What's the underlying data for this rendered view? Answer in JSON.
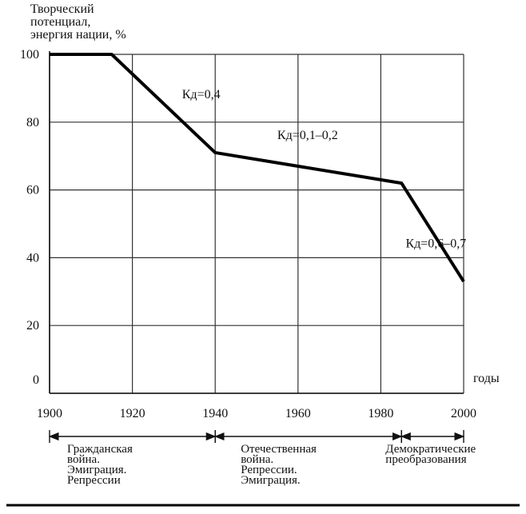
{
  "chart_data": {
    "type": "line",
    "ylabel_lines": [
      "Творческий",
      "потенциал,",
      "энергия нации, %"
    ],
    "xlabel": "годы",
    "xlim": [
      1900,
      2000
    ],
    "ylim": [
      0,
      100
    ],
    "x_ticks": [
      1900,
      1920,
      1940,
      1960,
      1980,
      2000
    ],
    "y_ticks": [
      0,
      20,
      40,
      60,
      80,
      100
    ],
    "grid": true,
    "series": [
      {
        "x": [
          1900,
          1915,
          1940,
          1985,
          2000
        ],
        "y": [
          100,
          100,
          71,
          62,
          33
        ]
      }
    ],
    "annotations": [
      {
        "text": "Кд=0,4",
        "x": 1932,
        "y": 87
      },
      {
        "text": "Кд=0,1–0,2",
        "x": 1955,
        "y": 75
      },
      {
        "text": "Кд=0,6–0,7",
        "x": 1986,
        "y": 43
      }
    ],
    "periods": [
      {
        "from": 1900,
        "to": 1940,
        "lines": [
          "Гражданская",
          "война.",
          "Эмиграция.",
          "Репрессии"
        ]
      },
      {
        "from": 1940,
        "to": 1985,
        "lines": [
          "Отечественная",
          "война.",
          "Репрессии.",
          "Эмиграция."
        ]
      },
      {
        "from": 1985,
        "to": 2000,
        "lines": [
          "Демократические",
          "преобразования"
        ]
      }
    ]
  }
}
